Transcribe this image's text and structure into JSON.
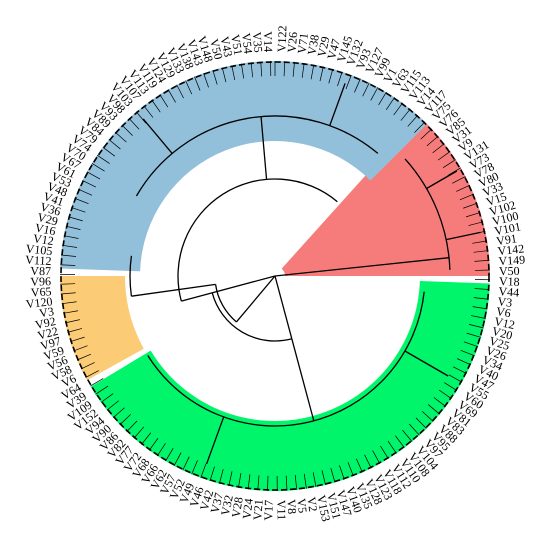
{
  "colors": {
    "background": "#ffffff",
    "tree_stroke": "#000000",
    "ring_stroke": "#000000"
  },
  "clusters": [
    {
      "name": "red",
      "color": "#f67c7c",
      "labels": [
        "V122",
        "V80",
        "V78",
        "V73",
        "V131",
        "V9",
        "V31",
        "V85",
        "V76",
        "V75",
        "V117"
      ]
    },
    {
      "name": "green",
      "color": "#00f56a",
      "labels": [
        "V33",
        "V15",
        "V102",
        "V100",
        "V101",
        "V91",
        "V142",
        "V149",
        "V50",
        "V18",
        "V44",
        "V3",
        "V6",
        "V12",
        "V20",
        "V25",
        "V26",
        "V34",
        "V40",
        "V47",
        "V55",
        "V60",
        "V69",
        "V81",
        "V83",
        "V88",
        "V95",
        "V97",
        "V104",
        "V108",
        "V110",
        "V112",
        "V118",
        "V123",
        "V128",
        "V135",
        "V140",
        "V147",
        "V151",
        "V153"
      ]
    },
    {
      "name": "orange",
      "color": "#fbcb76",
      "labels": [
        "V59",
        "V56",
        "V58",
        "V6",
        "V64",
        "V39",
        "V109",
        "V152"
      ]
    },
    {
      "name": "blue",
      "color": "#92bfd9",
      "labels": [
        "V97",
        "V22",
        "V92",
        "V3",
        "V120",
        "V65",
        "V96",
        "V87",
        "V112",
        "V105",
        "V12",
        "V16",
        "V29",
        "V36",
        "V41",
        "V48",
        "V53",
        "V61",
        "V67",
        "V70",
        "V74",
        "V79",
        "V84",
        "V89",
        "V93",
        "V98",
        "V103",
        "V107",
        "V113",
        "V119",
        "V124",
        "V129",
        "V133",
        "V138",
        "V143",
        "V148",
        "V50",
        "V43",
        "V51",
        "V54",
        "V35",
        "V14"
      ]
    }
  ],
  "leaf_labels": {
    "clockwise_from_top": [
      "V122",
      "V26",
      "V71",
      "V38",
      "V29",
      "V47",
      "V145",
      "V132",
      "V93",
      "V127",
      "V99",
      "V1",
      "V63",
      "V115",
      "V113",
      "V14",
      "V117",
      "V75",
      "V76",
      "V85",
      "V31",
      "V9",
      "V131",
      "V73",
      "V78",
      "V80",
      "V33",
      "V15",
      "V102",
      "V100",
      "V101",
      "V91",
      "V142",
      "V149",
      "V50",
      "V18",
      "V44",
      "V3",
      "V6",
      "V12",
      "V20",
      "V25",
      "V26",
      "V34",
      "V40",
      "V47",
      "V55",
      "V60",
      "V69",
      "V81",
      "V83",
      "V88",
      "V95",
      "V97",
      "V104",
      "V108",
      "V110",
      "V112",
      "V118",
      "V123",
      "V128",
      "V135",
      "V140",
      "V147",
      "V151",
      "V153",
      "V2",
      "V5",
      "V8",
      "V11",
      "V17",
      "V21",
      "V24",
      "V28",
      "V32",
      "V37",
      "V42",
      "V46",
      "V49",
      "V52",
      "V57",
      "V62",
      "V66",
      "V68",
      "V72",
      "V77",
      "V82",
      "V86",
      "V90",
      "V94",
      "V152",
      "V109",
      "V39",
      "V64",
      "V6",
      "V58",
      "V56",
      "V59",
      "V97",
      "V22",
      "V92",
      "V3",
      "V120",
      "V65",
      "V96",
      "V87",
      "V112",
      "V105",
      "V12",
      "V16",
      "V29",
      "V36",
      "V41",
      "V48",
      "V53",
      "V61",
      "V67",
      "V70",
      "V74",
      "V79",
      "V84",
      "V89",
      "V93",
      "V98",
      "V103",
      "V107",
      "V113",
      "V119",
      "V124",
      "V129",
      "V133",
      "V138",
      "V143",
      "V148",
      "V50",
      "V43",
      "V51",
      "V54",
      "V35",
      "V14"
    ]
  }
}
